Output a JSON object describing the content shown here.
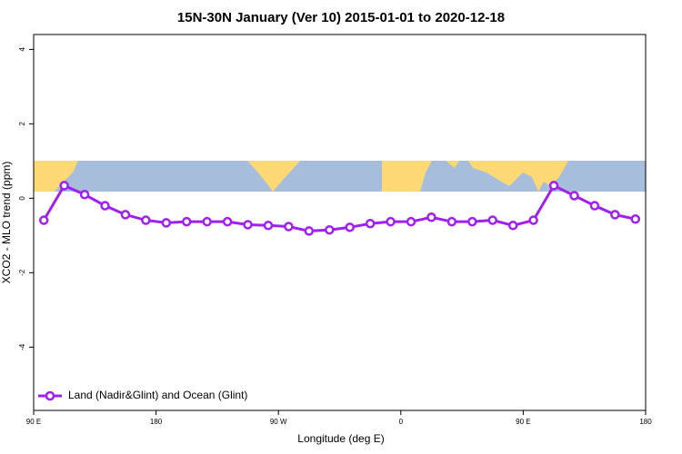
{
  "chart_data": {
    "type": "line",
    "title": "15N-30N January (Ver 10)   2015-01-01 to 2020-12-18",
    "x_label": "Longitude (deg E)",
    "y_label": "XCO2 - MLO trend (ppm)",
    "x": [
      97.5,
      112.5,
      127.5,
      142.5,
      157.5,
      172.5,
      187.5,
      202.5,
      217.5,
      232.5,
      247.5,
      262.5,
      277.5,
      292.5,
      307.5,
      322.5,
      337.5,
      352.5,
      367.5,
      382.5,
      397.5,
      412.5,
      427.5,
      442.5,
      457.5,
      472.5,
      487.5,
      502.5,
      517.5,
      532.5
    ],
    "series": [
      {
        "name": "Land (Nadir&Glint) and Ocean (Glint)",
        "color": "#a020f0",
        "values": [
          -0.59,
          0.34,
          0.1,
          -0.2,
          -0.44,
          -0.59,
          -0.66,
          -0.63,
          -0.63,
          -0.63,
          -0.71,
          -0.73,
          -0.76,
          -0.88,
          -0.85,
          -0.78,
          -0.68,
          -0.63,
          -0.63,
          -0.51,
          -0.63,
          -0.63,
          -0.59,
          -0.73,
          -0.59,
          0.34,
          0.07,
          -0.2,
          -0.44,
          -0.56
        ]
      }
    ],
    "xlim": [
      90,
      540
    ],
    "xticks": [
      {
        "value": 90,
        "label": "90 E"
      },
      180,
      {
        "value": 270,
        "label": "90 W"
      },
      {
        "value": 360,
        "label": "0"
      },
      {
        "value": 450,
        "label": "90 E"
      },
      {
        "value": 540,
        "label": "180"
      }
    ],
    "ylim": [
      -5.7,
      4.4
    ],
    "yticks": [
      -4,
      -2,
      0,
      2,
      4
    ],
    "grid": false,
    "legend": "bottom-left"
  }
}
